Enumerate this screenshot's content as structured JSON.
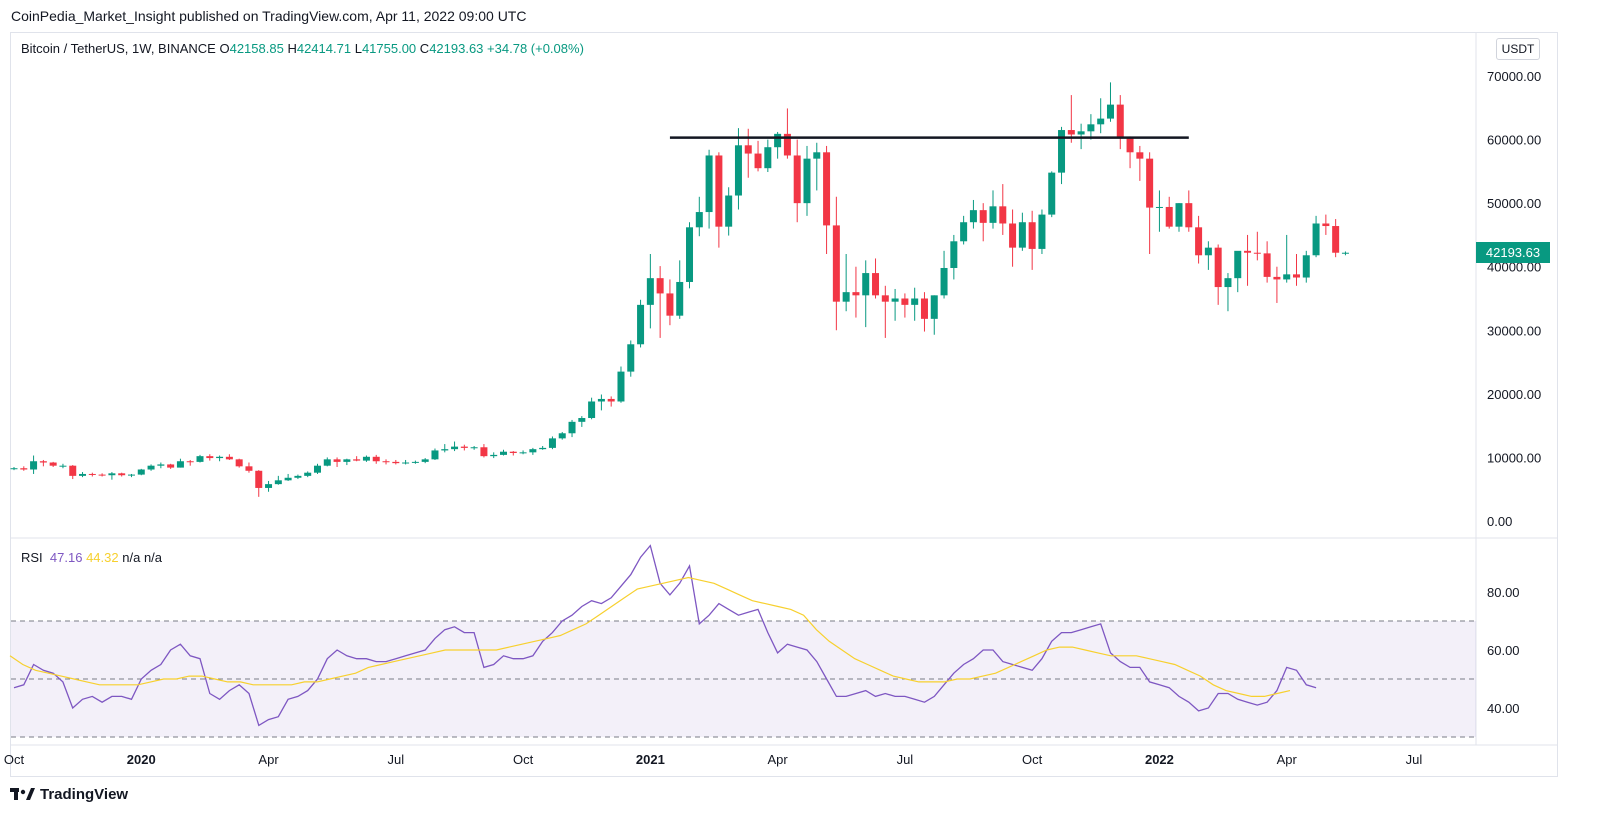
{
  "publisher": "CoinPedia_Market_Insight published on TradingView.com, Apr 11, 2022 09:00 UTC",
  "legend": {
    "symbol": "Bitcoin / TetherUS, 1W, BINANCE",
    "o_label": "O",
    "o": "42158.85",
    "h_label": "H",
    "h": "42414.71",
    "l_label": "L",
    "l": "41755.00",
    "c_label": "C",
    "c": "42193.63",
    "change": "+34.78 (+0.08%)"
  },
  "currency": "USDT",
  "last_price": "42193.63",
  "rsi_legend": {
    "name": "RSI",
    "rsi": "47.16",
    "ma": "44.32",
    "na1": "n/a",
    "na2": "n/a"
  },
  "brand": "TradingView",
  "colors": {
    "up": "#089981",
    "down": "#f23645",
    "rsi": "#7e57c2",
    "rsi_ma": "#f7d02e",
    "band": "#7e57c2"
  },
  "chart_data": [
    {
      "type": "candlestick",
      "ylim": [
        0,
        72000
      ],
      "y_ticks": [
        "70000.00",
        "60000.00",
        "50000.00",
        "40000.00",
        "30000.00",
        "20000.00",
        "10000.00",
        "0.00"
      ],
      "y_tick_values": [
        70000,
        60000,
        50000,
        40000,
        30000,
        20000,
        10000,
        0
      ],
      "x_ticks": [
        "Oct",
        "2020",
        "Apr",
        "Jul",
        "Oct",
        "2021",
        "Apr",
        "Jul",
        "Oct",
        "2022",
        "Apr",
        "Jul"
      ],
      "x_ticks_bold": [
        false,
        true,
        false,
        false,
        false,
        true,
        false,
        false,
        false,
        true,
        false,
        false
      ],
      "x_tick_week_index": [
        0,
        13,
        26,
        39,
        52,
        65,
        78,
        91,
        104,
        117,
        130,
        143
      ],
      "resistance_level": 60300,
      "resistance_weeks": [
        67,
        120
      ],
      "ohlc": [
        [
          8200,
          8500,
          8000,
          8300
        ],
        [
          8300,
          8600,
          7900,
          8100
        ],
        [
          8100,
          10300,
          7400,
          9400
        ],
        [
          9400,
          9600,
          8600,
          9200
        ],
        [
          9200,
          9300,
          8500,
          8700
        ],
        [
          8700,
          9000,
          8300,
          8700
        ],
        [
          8700,
          8800,
          6600,
          7100
        ],
        [
          7100,
          7700,
          6900,
          7400
        ],
        [
          7400,
          7600,
          7000,
          7300
        ],
        [
          7300,
          7500,
          7000,
          7200
        ],
        [
          7200,
          7700,
          6500,
          7500
        ],
        [
          7500,
          7600,
          7000,
          7200
        ],
        [
          7200,
          7400,
          6900,
          7300
        ],
        [
          7300,
          8200,
          7200,
          8100
        ],
        [
          8100,
          8900,
          7900,
          8700
        ],
        [
          8700,
          9200,
          8300,
          8900
        ],
        [
          8900,
          9000,
          8200,
          8400
        ],
        [
          8400,
          9800,
          8400,
          9400
        ],
        [
          9400,
          9600,
          8700,
          9300
        ],
        [
          9300,
          10400,
          9200,
          10200
        ],
        [
          10200,
          10500,
          9500,
          9900
        ],
        [
          9900,
          10300,
          9400,
          10100
        ],
        [
          10100,
          10500,
          9600,
          9700
        ],
        [
          9700,
          9800,
          8400,
          8600
        ],
        [
          8600,
          9200,
          7600,
          7900
        ],
        [
          7900,
          8000,
          3800,
          5200
        ],
        [
          5200,
          6300,
          4600,
          5800
        ],
        [
          5800,
          7100,
          5700,
          6400
        ],
        [
          6400,
          7400,
          6300,
          6800
        ],
        [
          6800,
          7300,
          6600,
          7100
        ],
        [
          7100,
          7800,
          6900,
          7600
        ],
        [
          7600,
          9000,
          7400,
          8700
        ],
        [
          8700,
          10000,
          8600,
          9700
        ],
        [
          9700,
          10000,
          8500,
          9300
        ],
        [
          9300,
          9800,
          8800,
          9700
        ],
        [
          9700,
          10200,
          9400,
          9500
        ],
        [
          9500,
          10300,
          9300,
          10100
        ],
        [
          10100,
          10400,
          9000,
          9400
        ],
        [
          9400,
          9700,
          8900,
          9300
        ],
        [
          9300,
          9600,
          8900,
          9100
        ],
        [
          9100,
          9600,
          8900,
          9200
        ],
        [
          9200,
          9500,
          9000,
          9300
        ],
        [
          9300,
          9900,
          9100,
          9700
        ],
        [
          9700,
          11400,
          9600,
          11100
        ],
        [
          11100,
          12100,
          10800,
          11300
        ],
        [
          11300,
          12500,
          11000,
          11700
        ],
        [
          11700,
          12000,
          11100,
          11500
        ],
        [
          11500,
          11800,
          11200,
          11600
        ],
        [
          11600,
          12100,
          10000,
          10200
        ],
        [
          10200,
          10800,
          9900,
          10400
        ],
        [
          10400,
          11200,
          10300,
          10900
        ],
        [
          10900,
          11000,
          10300,
          10700
        ],
        [
          10700,
          11100,
          10500,
          10800
        ],
        [
          10800,
          11500,
          10400,
          11300
        ],
        [
          11300,
          11800,
          11200,
          11500
        ],
        [
          11500,
          13300,
          11300,
          13000
        ],
        [
          13000,
          14000,
          12800,
          13800
        ],
        [
          13800,
          15900,
          13200,
          15600
        ],
        [
          15600,
          16500,
          14800,
          16200
        ],
        [
          16200,
          19400,
          16000,
          18800
        ],
        [
          18800,
          19900,
          17400,
          19200
        ],
        [
          19200,
          19600,
          18000,
          18800
        ],
        [
          18800,
          24300,
          18600,
          23500
        ],
        [
          23500,
          28400,
          22700,
          27800
        ],
        [
          27800,
          34800,
          27300,
          34000
        ],
        [
          34000,
          42000,
          30300,
          38200
        ],
        [
          38200,
          40100,
          28800,
          35800
        ],
        [
          35800,
          38000,
          30800,
          32300
        ],
        [
          32300,
          41000,
          31800,
          37600
        ],
        [
          37600,
          47000,
          36600,
          46200
        ],
        [
          46200,
          51000,
          44800,
          48600
        ],
        [
          48600,
          58400,
          46000,
          57500
        ],
        [
          57500,
          58000,
          43000,
          46300
        ],
        [
          46300,
          52500,
          44900,
          51200
        ],
        [
          51200,
          61800,
          49000,
          59100
        ],
        [
          59100,
          61700,
          54000,
          57800
        ],
        [
          57800,
          59800,
          55000,
          55500
        ],
        [
          55500,
          60000,
          54900,
          58800
        ],
        [
          58800,
          61200,
          57000,
          60900
        ],
        [
          60900,
          64900,
          57000,
          57500
        ],
        [
          57500,
          60000,
          47000,
          50000
        ],
        [
          50000,
          59000,
          48000,
          57000
        ],
        [
          57000,
          59500,
          52000,
          58000
        ],
        [
          58000,
          59000,
          42000,
          46500
        ],
        [
          46500,
          51000,
          30000,
          34500
        ],
        [
          34500,
          42000,
          33000,
          36000
        ],
        [
          36000,
          40000,
          32000,
          35500
        ],
        [
          35500,
          41000,
          30500,
          39000
        ],
        [
          39000,
          41300,
          35000,
          35500
        ],
        [
          35500,
          37000,
          28800,
          34500
        ],
        [
          34500,
          36500,
          31500,
          35000
        ],
        [
          35000,
          35800,
          32000,
          34000
        ],
        [
          34000,
          36700,
          31500,
          35000
        ],
        [
          35000,
          36000,
          29800,
          31800
        ],
        [
          31800,
          35500,
          29300,
          35500
        ],
        [
          35500,
          42500,
          35000,
          39800
        ],
        [
          39800,
          45000,
          38000,
          44000
        ],
        [
          44000,
          48000,
          43500,
          47000
        ],
        [
          47000,
          50500,
          46000,
          48900
        ],
        [
          48900,
          50000,
          44000,
          46900
        ],
        [
          46900,
          52000,
          46000,
          49500
        ],
        [
          49500,
          53000,
          45000,
          46800
        ],
        [
          46800,
          49000,
          40000,
          43000
        ],
        [
          43000,
          48500,
          42500,
          47000
        ],
        [
          47000,
          48800,
          39500,
          42800
        ],
        [
          42800,
          49000,
          42000,
          48200
        ],
        [
          48200,
          55000,
          47800,
          54800
        ],
        [
          54800,
          62000,
          53000,
          61500
        ],
        [
          61500,
          67000,
          59500,
          60800
        ],
        [
          60800,
          62500,
          58500,
          61300
        ],
        [
          61300,
          64000,
          60000,
          62400
        ],
        [
          62400,
          66500,
          61000,
          63300
        ],
        [
          63300,
          69000,
          62800,
          65500
        ],
        [
          65500,
          67000,
          58500,
          60200
        ],
        [
          60200,
          60500,
          55500,
          58000
        ],
        [
          58000,
          59000,
          53500,
          57000
        ],
        [
          57000,
          58000,
          42000,
          49300
        ],
        [
          49300,
          52000,
          45500,
          49400
        ],
        [
          49400,
          51000,
          46000,
          46300
        ],
        [
          46300,
          50000,
          45500,
          50000
        ],
        [
          50000,
          52000,
          45500,
          46200
        ],
        [
          46200,
          48000,
          40500,
          41800
        ],
        [
          41800,
          44000,
          39500,
          43000
        ],
        [
          43000,
          43500,
          34000,
          36800
        ],
        [
          36800,
          39000,
          33000,
          38200
        ],
        [
          38200,
          42000,
          36000,
          42500
        ],
        [
          42500,
          45000,
          37000,
          42200
        ],
        [
          42200,
          45500,
          41000,
          42100
        ],
        [
          42100,
          44000,
          37500,
          38400
        ],
        [
          38400,
          40000,
          34300,
          38000
        ],
        [
          38000,
          45000,
          37500,
          38800
        ],
        [
          38800,
          42000,
          37000,
          38300
        ],
        [
          38300,
          42500,
          37500,
          41800
        ],
        [
          41800,
          48000,
          41500,
          46800
        ],
        [
          46800,
          48200,
          45000,
          46400
        ],
        [
          46400,
          47500,
          41500,
          42200
        ],
        [
          42200,
          42400,
          41800,
          42200
        ]
      ]
    },
    {
      "type": "line",
      "name": "RSI",
      "ylim": [
        29,
        96
      ],
      "y_ticks": [
        "80.00",
        "60.00",
        "40.00"
      ],
      "y_tick_values": [
        80,
        60,
        40
      ],
      "bands": [
        30,
        50,
        70
      ],
      "series": [
        {
          "name": "RSI",
          "values": [
            47,
            48,
            55,
            53,
            52,
            49,
            40,
            43,
            44,
            42,
            44,
            44,
            43,
            50,
            53,
            55,
            60,
            62,
            58,
            57,
            45,
            43,
            46,
            48,
            45,
            34,
            36,
            37,
            43,
            44,
            46,
            50,
            57,
            60,
            58,
            57,
            57,
            56,
            56,
            57,
            58,
            59,
            60,
            64,
            67,
            68,
            66,
            66,
            54,
            55,
            58,
            57,
            57,
            58,
            63,
            66,
            70,
            72,
            75,
            77,
            76,
            78,
            82,
            86,
            92,
            96,
            83,
            79,
            83,
            89,
            69,
            72,
            76,
            74,
            72,
            73,
            74,
            66,
            59,
            62,
            61,
            60,
            56,
            50,
            44,
            44,
            45,
            46,
            44,
            45,
            44,
            44,
            43,
            42,
            44,
            48,
            52,
            55,
            57,
            60,
            60,
            56,
            55,
            54,
            53,
            57,
            63,
            66,
            66,
            67,
            68,
            69,
            59,
            56,
            54,
            54,
            49,
            48,
            47,
            44,
            42,
            39,
            40,
            45,
            45,
            43,
            42,
            41,
            42,
            46,
            54,
            53,
            48,
            47
          ],
          "values_from_week": 0
        },
        {
          "name": "MA",
          "values": [
            58,
            55,
            53,
            52,
            51,
            50,
            49,
            48,
            48,
            48,
            48,
            49,
            50,
            50,
            51,
            51,
            50,
            49,
            49,
            48,
            48,
            48,
            48,
            49,
            49,
            50,
            51,
            52,
            54,
            55,
            56,
            57,
            58,
            59,
            60,
            60,
            60,
            60,
            60,
            61,
            62,
            63,
            64,
            65,
            67,
            69,
            72,
            75,
            78,
            81,
            82,
            83,
            84,
            85,
            84,
            83,
            81,
            79,
            77,
            76,
            75,
            74,
            72,
            67,
            63,
            60,
            57,
            55,
            53,
            51,
            50,
            49,
            49,
            49,
            50,
            50,
            51,
            52,
            54,
            56,
            58,
            60,
            61,
            61,
            60,
            59,
            58,
            58,
            58,
            57,
            56,
            55,
            53,
            51,
            48,
            46,
            45,
            44,
            44,
            45,
            46
          ],
          "values_from_week": 0
        }
      ]
    }
  ]
}
